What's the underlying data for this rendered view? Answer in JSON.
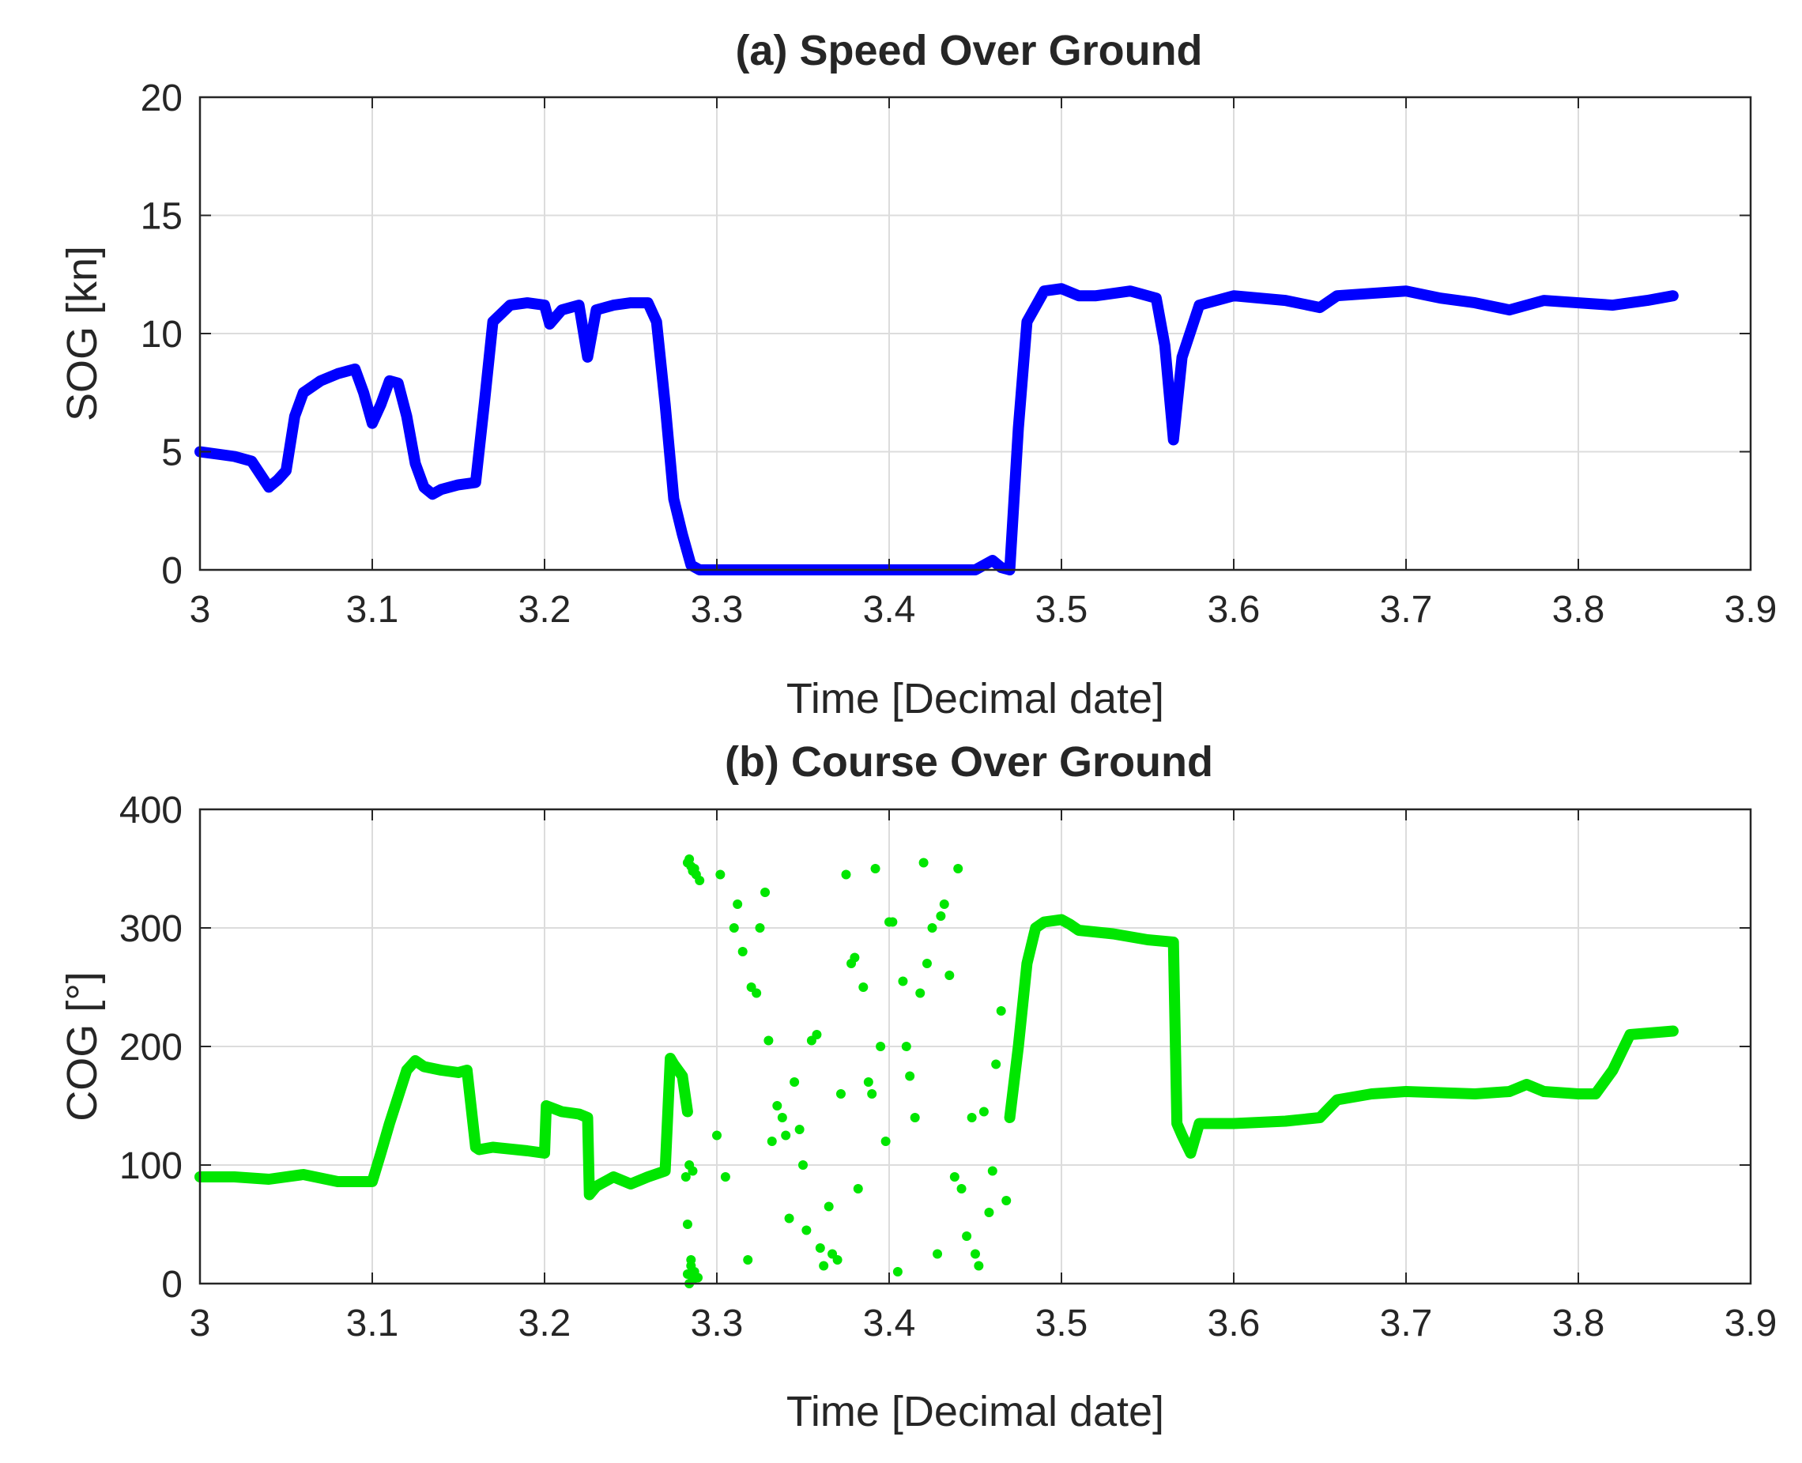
{
  "chart_data": [
    {
      "type": "line",
      "title": "(a) Speed Over Ground",
      "xlabel": "Time [Decimal date]",
      "ylabel": "SOG [kn]",
      "xlim": [
        3,
        3.9
      ],
      "ylim": [
        0,
        20
      ],
      "xticks": [
        "3",
        "3.1",
        "3.2",
        "3.3",
        "3.4",
        "3.5",
        "3.6",
        "3.7",
        "3.8",
        "3.9"
      ],
      "yticks": [
        "0",
        "5",
        "10",
        "15",
        "20"
      ],
      "grid": true,
      "color": "#0000ff",
      "series": [
        {
          "name": "SOG",
          "x": [
            3.0,
            3.01,
            3.02,
            3.03,
            3.04,
            3.045,
            3.05,
            3.055,
            3.06,
            3.07,
            3.08,
            3.09,
            3.095,
            3.1,
            3.105,
            3.11,
            3.115,
            3.12,
            3.125,
            3.13,
            3.135,
            3.14,
            3.15,
            3.16,
            3.165,
            3.17,
            3.18,
            3.19,
            3.2,
            3.203,
            3.21,
            3.22,
            3.225,
            3.23,
            3.24,
            3.25,
            3.26,
            3.265,
            3.27,
            3.275,
            3.28,
            3.285,
            3.29,
            3.3,
            3.35,
            3.4,
            3.45,
            3.46,
            3.465,
            3.47,
            3.475,
            3.48,
            3.49,
            3.5,
            3.51,
            3.52,
            3.54,
            3.555,
            3.56,
            3.565,
            3.57,
            3.58,
            3.6,
            3.63,
            3.65,
            3.66,
            3.68,
            3.7,
            3.72,
            3.74,
            3.76,
            3.78,
            3.8,
            3.82,
            3.84,
            3.855
          ],
          "y": [
            5.0,
            4.9,
            4.8,
            4.6,
            3.5,
            3.8,
            4.2,
            6.5,
            7.5,
            8.0,
            8.3,
            8.5,
            7.5,
            6.2,
            7.0,
            8.0,
            7.9,
            6.5,
            4.5,
            3.5,
            3.2,
            3.4,
            3.6,
            3.7,
            7.0,
            10.5,
            11.2,
            11.3,
            11.2,
            10.4,
            11.0,
            11.2,
            9.0,
            11.0,
            11.2,
            11.3,
            11.3,
            10.5,
            7.0,
            3.0,
            1.5,
            0.2,
            0.0,
            0.0,
            0.0,
            0.0,
            0.0,
            0.4,
            0.1,
            0.0,
            6.0,
            10.5,
            11.8,
            11.9,
            11.6,
            11.6,
            11.8,
            11.5,
            9.5,
            5.5,
            9.0,
            11.2,
            11.6,
            11.4,
            11.1,
            11.6,
            11.7,
            11.8,
            11.5,
            11.3,
            11.0,
            11.4,
            11.3,
            11.2,
            11.4,
            11.6
          ]
        }
      ]
    },
    {
      "type": "scatter",
      "title": "(b) Course Over Ground",
      "xlabel": "Time [Decimal date]",
      "ylabel": "COG [°]",
      "xlim": [
        3,
        3.9
      ],
      "ylim": [
        0,
        400
      ],
      "xticks": [
        "3",
        "3.1",
        "3.2",
        "3.3",
        "3.4",
        "3.5",
        "3.6",
        "3.7",
        "3.8",
        "3.9"
      ],
      "yticks": [
        "0",
        "100",
        "200",
        "300",
        "400"
      ],
      "grid": true,
      "color": "#00e600",
      "series": [
        {
          "name": "COG trace",
          "x": [
            3.0,
            3.02,
            3.04,
            3.06,
            3.08,
            3.1,
            3.105,
            3.11,
            3.12,
            3.125,
            3.13,
            3.14,
            3.15,
            3.155,
            3.16,
            3.162,
            3.17,
            3.19,
            3.2,
            3.201,
            3.21,
            3.22,
            3.225,
            3.226,
            3.23,
            3.24,
            3.25,
            3.26,
            3.27,
            3.273,
            3.275,
            3.28,
            3.283
          ],
          "y": [
            90,
            90,
            88,
            92,
            86,
            86,
            110,
            135,
            180,
            188,
            183,
            180,
            178,
            180,
            115,
            113,
            115,
            112,
            110,
            150,
            145,
            143,
            140,
            75,
            82,
            90,
            84,
            90,
            95,
            190,
            185,
            175,
            145
          ]
        },
        {
          "name": "COG trace (resumed)",
          "x": [
            3.47,
            3.475,
            3.48,
            3.485,
            3.49,
            3.5,
            3.505,
            3.51,
            3.53,
            3.55,
            3.565,
            3.567,
            3.57,
            3.575,
            3.58,
            3.6,
            3.63,
            3.65,
            3.66,
            3.68,
            3.7,
            3.74,
            3.76,
            3.77,
            3.78,
            3.8,
            3.81,
            3.82,
            3.83,
            3.855
          ],
          "y": [
            140,
            200,
            270,
            300,
            305,
            307,
            303,
            298,
            295,
            290,
            288,
            135,
            125,
            110,
            135,
            135,
            137,
            140,
            155,
            160,
            162,
            160,
            162,
            168,
            162,
            160,
            160,
            180,
            210,
            213
          ]
        },
        {
          "name": "COG scatter (stationary)",
          "x": [
            3.283,
            3.284,
            3.285,
            3.286,
            3.287,
            3.288,
            3.29,
            3.282,
            3.284,
            3.286,
            3.283,
            3.285,
            3.287,
            3.289,
            3.284,
            3.286,
            3.283,
            3.285,
            3.3,
            3.302,
            3.305,
            3.31,
            3.312,
            3.315,
            3.318,
            3.32,
            3.323,
            3.325,
            3.328,
            3.33,
            3.332,
            3.335,
            3.338,
            3.34,
            3.342,
            3.345,
            3.348,
            3.35,
            3.352,
            3.355,
            3.358,
            3.36,
            3.362,
            3.365,
            3.367,
            3.37,
            3.372,
            3.375,
            3.378,
            3.38,
            3.382,
            3.385,
            3.388,
            3.39,
            3.392,
            3.395,
            3.398,
            3.4,
            3.402,
            3.405,
            3.408,
            3.41,
            3.412,
            3.415,
            3.418,
            3.42,
            3.422,
            3.425,
            3.428,
            3.43,
            3.432,
            3.435,
            3.438,
            3.44,
            3.442,
            3.445,
            3.448,
            3.45,
            3.452,
            3.455,
            3.458,
            3.46,
            3.462,
            3.465,
            3.468
          ],
          "y": [
            355,
            358,
            352,
            348,
            350,
            345,
            340,
            90,
            100,
            95,
            50,
            20,
            10,
            5,
            0,
            3,
            8,
            15,
            125,
            345,
            90,
            300,
            320,
            280,
            20,
            250,
            245,
            300,
            330,
            205,
            120,
            150,
            140,
            125,
            55,
            170,
            130,
            100,
            45,
            205,
            210,
            30,
            15,
            65,
            25,
            20,
            160,
            345,
            270,
            275,
            80,
            250,
            170,
            160,
            350,
            200,
            120,
            305,
            305,
            10,
            255,
            200,
            175,
            140,
            245,
            355,
            270,
            300,
            25,
            310,
            320,
            260,
            90,
            350,
            80,
            40,
            140,
            25,
            15,
            145,
            60,
            95,
            185,
            230,
            70
          ]
        }
      ]
    }
  ]
}
